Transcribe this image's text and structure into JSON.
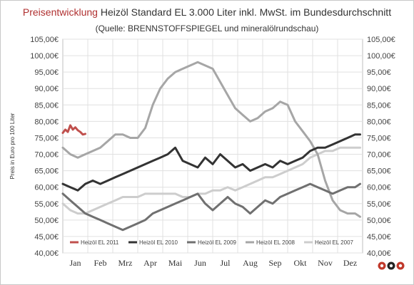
{
  "title": {
    "part1": "Preisentwicklung",
    "part2": " Heizöl Standard EL 3.000 Liter inkl. MwSt. im ",
    "part3": "Bundesdurchschnitt"
  },
  "subtitle": "(Quelle: BRENNSTOFFSPIEGEL und mineralölrundschau)",
  "logo_name": "logo-icon",
  "chart_data": {
    "type": "line",
    "title": "Preisentwicklung Heizöl Standard EL 3.000 Liter inkl. MwSt. im Bundesdurchschnitt",
    "ylabel": "Preis in Euro pro 100 Liter",
    "xlabel": "",
    "ylim": [
      40,
      105
    ],
    "xlim": [
      0,
      12
    ],
    "grid": true,
    "legend_position": "bottom",
    "yticks": [
      "40,00€",
      "45,00€",
      "50,00€",
      "55,00€",
      "60,00€",
      "65,00€",
      "70,00€",
      "75,00€",
      "80,00€",
      "85,00€",
      "90,00€",
      "95,00€",
      "100,00€",
      "105,00€"
    ],
    "yticks_right": [
      "40,00€",
      "45,00€",
      "50,00€",
      "55,00€",
      "60,00€",
      "65,00€",
      "70,00€",
      "75,00€",
      "80,00€",
      "85,00€",
      "90,00€",
      "95,00€",
      "100,00€",
      "105,00€"
    ],
    "categories": [
      "Jan",
      "Feb",
      "Mrz",
      "Apr",
      "Mai",
      "Jun",
      "Jul",
      "Aug",
      "Sep",
      "Okt",
      "Nov",
      "Dez"
    ],
    "series": [
      {
        "name": "Heizöl EL 2011",
        "color": "#c0504d",
        "x": [
          0.0,
          0.1,
          0.2,
          0.3,
          0.4,
          0.5,
          0.6,
          0.7,
          0.8,
          0.9
        ],
        "y": [
          76.5,
          77.5,
          76.8,
          78.8,
          77.5,
          78.2,
          77.3,
          76.8,
          76.0,
          76.2
        ]
      },
      {
        "name": "Heizöl EL 2010",
        "color": "#333333",
        "x": [
          0.0,
          0.3,
          0.6,
          0.9,
          1.2,
          1.5,
          1.8,
          2.1,
          2.4,
          2.7,
          3.0,
          3.3,
          3.6,
          3.9,
          4.2,
          4.5,
          4.8,
          5.1,
          5.4,
          5.7,
          6.0,
          6.3,
          6.6,
          6.9,
          7.2,
          7.5,
          7.8,
          8.1,
          8.4,
          8.7,
          9.0,
          9.3,
          9.6,
          9.9,
          10.2,
          10.5,
          10.8,
          11.1,
          11.4,
          11.7,
          11.9
        ],
        "y": [
          61,
          60,
          59,
          61,
          62,
          61,
          62,
          63,
          64,
          65,
          66,
          67,
          68,
          69,
          70,
          72,
          68,
          67,
          66,
          69,
          67,
          70,
          68,
          66,
          67,
          65,
          66,
          67,
          66,
          68,
          67,
          68,
          69,
          71,
          72,
          72,
          73,
          74,
          75,
          76,
          76
        ]
      },
      {
        "name": "Heizöl EL 2009",
        "color": "#707070",
        "x": [
          0.0,
          0.3,
          0.6,
          0.9,
          1.2,
          1.5,
          1.8,
          2.1,
          2.4,
          2.7,
          3.0,
          3.3,
          3.6,
          3.9,
          4.2,
          4.5,
          4.8,
          5.1,
          5.4,
          5.7,
          6.0,
          6.3,
          6.6,
          6.9,
          7.2,
          7.5,
          7.8,
          8.1,
          8.4,
          8.7,
          9.0,
          9.3,
          9.6,
          9.9,
          10.2,
          10.5,
          10.8,
          11.1,
          11.4,
          11.7,
          11.9
        ],
        "y": [
          58,
          56,
          54,
          52,
          51,
          50,
          49,
          48,
          47,
          48,
          49,
          50,
          52,
          53,
          54,
          55,
          56,
          57,
          58,
          55,
          53,
          55,
          57,
          55,
          54,
          52,
          54,
          56,
          55,
          57,
          58,
          59,
          60,
          61,
          60,
          59,
          58,
          59,
          60,
          60,
          61
        ]
      },
      {
        "name": "Heizöl EL 2008",
        "color": "#a6a6a6",
        "x": [
          0.0,
          0.3,
          0.6,
          0.9,
          1.2,
          1.5,
          1.8,
          2.1,
          2.4,
          2.7,
          3.0,
          3.3,
          3.6,
          3.9,
          4.2,
          4.5,
          4.8,
          5.1,
          5.4,
          5.7,
          6.0,
          6.3,
          6.6,
          6.9,
          7.2,
          7.5,
          7.8,
          8.1,
          8.4,
          8.7,
          9.0,
          9.3,
          9.6,
          9.9,
          10.2,
          10.5,
          10.8,
          11.1,
          11.4,
          11.7,
          11.9
        ],
        "y": [
          72,
          70,
          69,
          70,
          71,
          72,
          74,
          76,
          76,
          75,
          75,
          78,
          85,
          90,
          93,
          95,
          96,
          97,
          98,
          97,
          96,
          92,
          88,
          84,
          82,
          80,
          81,
          83,
          84,
          86,
          85,
          80,
          77,
          74,
          70,
          62,
          56,
          53,
          52,
          52,
          51
        ]
      },
      {
        "name": "Heizöl EL 2007",
        "color": "#cdcdcd",
        "x": [
          0.0,
          0.3,
          0.6,
          0.9,
          1.2,
          1.5,
          1.8,
          2.1,
          2.4,
          2.7,
          3.0,
          3.3,
          3.6,
          3.9,
          4.2,
          4.5,
          4.8,
          5.1,
          5.4,
          5.7,
          6.0,
          6.3,
          6.6,
          6.9,
          7.2,
          7.5,
          7.8,
          8.1,
          8.4,
          8.7,
          9.0,
          9.3,
          9.6,
          9.9,
          10.2,
          10.5,
          10.8,
          11.1,
          11.4,
          11.7,
          11.9
        ],
        "y": [
          55,
          53,
          52,
          52,
          53,
          54,
          55,
          56,
          57,
          57,
          57,
          58,
          58,
          58,
          58,
          58,
          57,
          57,
          58,
          58,
          59,
          59,
          60,
          59,
          60,
          61,
          62,
          63,
          63,
          64,
          65,
          66,
          67,
          69,
          70,
          71,
          71,
          72,
          72,
          72,
          72
        ]
      }
    ]
  }
}
